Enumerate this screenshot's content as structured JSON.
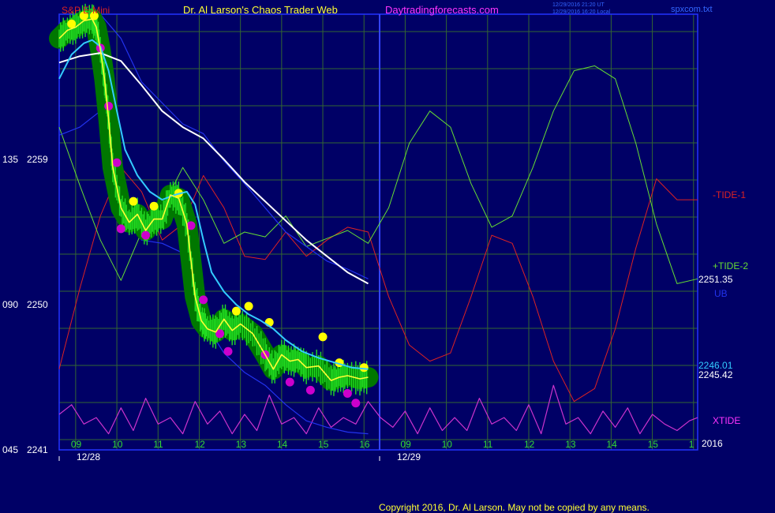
{
  "header": {
    "left_title": "S&P E-Mini",
    "center_title": "Dr. Al Larson's Chaos Trader Web",
    "site": "Daytradingforecasts.com",
    "timestamp_1": "12/29/2016 21:20 UT",
    "timestamp_2": "12/29/2016 16:20 Local",
    "file": "spxcom.txt"
  },
  "footer": {
    "copyright": "Copyright 2016, Dr. Al Larson. May not be copied by any means."
  },
  "colors": {
    "background": "#000066",
    "grid": "#336633",
    "frame": "#2233ff",
    "price_close": "#ffff33",
    "price_bars": "#22dd22",
    "highlight_green": "#007700",
    "dot_yellow": "#ffff00",
    "dot_magenta": "#cc00cc",
    "ema_cyan": "#33ccff",
    "ma_white": "#ffffff",
    "band_blue": "#2233ee",
    "tide_plus": "#66dd33",
    "tide_minus": "#dd2222",
    "xtide": "#cc33cc"
  },
  "chart_data": {
    "type": "line",
    "y_axis": {
      "ticks": [
        {
          "value": 2259,
          "label": "2259",
          "code": "135"
        },
        {
          "value": 2250,
          "label": "2250",
          "code": "090"
        },
        {
          "value": 2241,
          "label": "2241",
          "code": "045"
        }
      ],
      "range": [
        2241,
        2268
      ]
    },
    "x_axis": {
      "hour_labels": [
        "09",
        "10",
        "11",
        "12",
        "13",
        "14",
        "15",
        "16",
        "09",
        "10",
        "11",
        "12",
        "13",
        "14",
        "15",
        "1"
      ],
      "date_labels": [
        "12/28",
        "12/29"
      ],
      "year_label": "2016",
      "range": [
        8.5,
        24.0
      ]
    },
    "right_labels": {
      "tide_minus_1": "-TIDE-1",
      "tide_plus_2": "+TIDE-2",
      "price_current": "2251.35",
      "ub_label": "UB",
      "ema_value": "2246.01",
      "price_close_value": "2245.42",
      "xtide_label": "XTIDE"
    },
    "series": [
      {
        "name": "price",
        "color": "#ffff33",
        "x": [
          8.5,
          8.7,
          8.9,
          9.1,
          9.3,
          9.4,
          9.5,
          9.6,
          9.7,
          9.8,
          10.0,
          10.2,
          10.4,
          10.6,
          10.8,
          11.0,
          11.2,
          11.4,
          11.6,
          11.8,
          11.95,
          12.1,
          12.3,
          12.5,
          12.7,
          12.9,
          13.2,
          13.5,
          13.7,
          13.9,
          14.1,
          14.3,
          14.5,
          14.8,
          15.1,
          15.3,
          15.5,
          15.8,
          16.0
        ],
        "values": [
          2266.5,
          2267.0,
          2267.2,
          2267.6,
          2267.7,
          2267.2,
          2265.8,
          2264.0,
          2261.5,
          2258.5,
          2256.0,
          2255.1,
          2255.6,
          2254.6,
          2255.3,
          2255.3,
          2256.8,
          2256.6,
          2255.0,
          2250.5,
          2249.0,
          2248.5,
          2248.3,
          2249.1,
          2248.4,
          2248.8,
          2248.2,
          2246.9,
          2246.0,
          2246.9,
          2246.5,
          2246.6,
          2246.1,
          2246.2,
          2245.3,
          2245.5,
          2245.6,
          2245.4,
          2245.5
        ]
      },
      {
        "name": "+TIDE-2",
        "color": "#66dd33",
        "x": [
          8.5,
          9.0,
          9.5,
          10.0,
          10.5,
          11.0,
          11.5,
          12.0,
          12.5,
          13.0,
          13.5,
          14.0,
          14.5,
          15.0,
          15.5,
          16.0,
          16.5,
          17.0,
          17.5,
          18.0,
          18.5,
          19.0,
          19.5,
          20.0,
          20.5,
          21.0,
          21.5,
          22.0,
          22.5,
          23.0,
          23.5,
          24.0
        ],
        "values": [
          2261.0,
          2257.4,
          2254.0,
          2251.5,
          2254.5,
          2256.0,
          2258.5,
          2256.5,
          2253.8,
          2254.5,
          2254.2,
          2255.5,
          2253.6,
          2254.1,
          2254.6,
          2253.8,
          2256.0,
          2260.0,
          2262.0,
          2261.0,
          2257.5,
          2254.8,
          2255.5,
          2258.5,
          2262.0,
          2264.5,
          2264.8,
          2264.0,
          2260.0,
          2255.0,
          2251.3,
          2251.6
        ]
      },
      {
        "name": "-TIDE-1",
        "color": "#dd2222",
        "x": [
          8.5,
          9.0,
          9.5,
          10.0,
          10.5,
          11.0,
          11.5,
          12.0,
          12.5,
          13.0,
          13.5,
          14.0,
          14.5,
          15.0,
          15.5,
          16.0,
          16.5,
          17.0,
          17.5,
          18.0,
          18.5,
          19.0,
          19.5,
          20.0,
          20.5,
          21.0,
          21.5,
          22.0,
          22.5,
          23.0,
          23.5,
          24.0
        ],
        "values": [
          2246.0,
          2251.0,
          2255.5,
          2258.5,
          2257.0,
          2254.0,
          2255.0,
          2258.0,
          2256.0,
          2253.0,
          2252.8,
          2254.5,
          2253.0,
          2254.0,
          2254.8,
          2254.5,
          2250.5,
          2247.5,
          2246.5,
          2247.0,
          2250.5,
          2254.3,
          2253.8,
          2250.5,
          2246.5,
          2244.0,
          2244.8,
          2248.5,
          2253.5,
          2257.8,
          2256.5,
          2256.5
        ]
      },
      {
        "name": "XTIDE",
        "color": "#cc33cc",
        "x": [
          8.5,
          8.8,
          9.1,
          9.4,
          9.7,
          10.0,
          10.3,
          10.6,
          10.9,
          11.2,
          11.5,
          11.8,
          12.1,
          12.4,
          12.7,
          13.0,
          13.3,
          13.6,
          13.9,
          14.2,
          14.5,
          14.8,
          15.1,
          15.4,
          15.7,
          16.0,
          16.3,
          16.6,
          16.9,
          17.2,
          17.5,
          17.8,
          18.1,
          18.4,
          18.7,
          19.0,
          19.3,
          19.6,
          19.9,
          20.2,
          20.5,
          20.8,
          21.1,
          21.4,
          21.7,
          22.0,
          22.3,
          22.6,
          22.9,
          23.2,
          23.5,
          23.8,
          24.0
        ],
        "values": [
          2243.2,
          2243.8,
          2242.6,
          2243.0,
          2242.0,
          2243.6,
          2242.2,
          2244.2,
          2242.6,
          2243.0,
          2242.0,
          2244.0,
          2242.6,
          2243.4,
          2242.0,
          2243.2,
          2242.2,
          2244.4,
          2242.6,
          2243.0,
          2242.0,
          2243.6,
          2242.4,
          2243.0,
          2242.6,
          2244.0,
          2243.0,
          2242.4,
          2243.4,
          2242.0,
          2243.6,
          2242.2,
          2243.0,
          2242.2,
          2244.2,
          2242.6,
          2243.0,
          2242.2,
          2243.8,
          2242.0,
          2245.0,
          2242.6,
          2243.0,
          2242.0,
          2243.4,
          2242.4,
          2243.6,
          2242.0,
          2243.2,
          2242.6,
          2242.2,
          2242.8,
          2243.0
        ]
      },
      {
        "name": "EMA",
        "color": "#33ccff",
        "x": [
          8.5,
          8.8,
          9.1,
          9.3,
          9.5,
          9.7,
          9.9,
          10.1,
          10.4,
          10.7,
          11.0,
          11.3,
          11.6,
          11.8,
          12.0,
          12.2,
          12.5,
          12.8,
          13.1,
          13.4,
          13.7,
          14.0,
          14.4,
          14.8,
          15.2,
          15.6,
          16.0
        ],
        "values": [
          2264.0,
          2265.5,
          2266.2,
          2266.4,
          2266.0,
          2264.5,
          2262.0,
          2259.6,
          2258.0,
          2257.0,
          2256.5,
          2256.8,
          2257.0,
          2256.2,
          2254.0,
          2252.0,
          2250.8,
          2250.0,
          2249.4,
          2249.0,
          2248.5,
          2247.8,
          2247.1,
          2246.7,
          2246.4,
          2246.1,
          2246.0
        ]
      },
      {
        "name": "MA",
        "color": "#ffffff",
        "x": [
          8.5,
          9.0,
          9.5,
          10.0,
          10.5,
          11.0,
          11.5,
          12.0,
          12.5,
          13.0,
          13.5,
          14.0,
          14.5,
          15.0,
          15.5,
          16.0
        ],
        "values": [
          2265.0,
          2265.4,
          2265.6,
          2265.1,
          2263.6,
          2262.0,
          2261.0,
          2260.3,
          2259.0,
          2257.6,
          2256.4,
          2255.2,
          2254.0,
          2253.0,
          2252.0,
          2251.3
        ]
      },
      {
        "name": "UB",
        "color": "#2233ee",
        "x": [
          8.5,
          9.0,
          9.5,
          10.0,
          10.5,
          11.0,
          11.5,
          12.0,
          12.5,
          13.0,
          13.5,
          14.0,
          14.5,
          15.0,
          15.5,
          16.0
        ],
        "values": [
          2268.0,
          2268.0,
          2268.0,
          2266.5,
          2263.8,
          2262.5,
          2261.2,
          2260.6,
          2258.9,
          2257.5,
          2256.0,
          2254.5,
          2253.6,
          2252.7,
          2252.2,
          2251.6
        ]
      },
      {
        "name": "LB",
        "color": "#2233ee",
        "x": [
          8.5,
          9.0,
          9.5,
          10.0,
          10.5,
          11.0,
          11.5,
          12.0,
          12.5,
          13.0,
          13.5,
          14.0,
          14.5,
          15.0,
          15.5,
          16.0
        ],
        "values": [
          2260.5,
          2261.0,
          2262.0,
          2257.0,
          2254.0,
          2253.8,
          2253.2,
          2249.0,
          2247.0,
          2245.8,
          2245.0,
          2243.8,
          2242.8,
          2242.4,
          2242.1,
          2242.0
        ]
      }
    ],
    "dots_yellow": [
      {
        "x": 8.8,
        "y": 2267.4
      },
      {
        "x": 9.1,
        "y": 2267.9
      },
      {
        "x": 9.35,
        "y": 2267.9
      },
      {
        "x": 10.3,
        "y": 2256.4
      },
      {
        "x": 10.8,
        "y": 2256.1
      },
      {
        "x": 11.4,
        "y": 2256.9
      },
      {
        "x": 12.8,
        "y": 2249.6
      },
      {
        "x": 13.1,
        "y": 2249.9
      },
      {
        "x": 13.6,
        "y": 2248.9
      },
      {
        "x": 14.9,
        "y": 2248.0
      },
      {
        "x": 15.3,
        "y": 2246.4
      },
      {
        "x": 15.9,
        "y": 2246.1
      }
    ],
    "dots_magenta": [
      {
        "x": 9.5,
        "y": 2265.9
      },
      {
        "x": 9.7,
        "y": 2262.3
      },
      {
        "x": 9.9,
        "y": 2258.8
      },
      {
        "x": 10.0,
        "y": 2254.7
      },
      {
        "x": 10.6,
        "y": 2254.3
      },
      {
        "x": 11.7,
        "y": 2254.9
      },
      {
        "x": 12.0,
        "y": 2250.3
      },
      {
        "x": 12.4,
        "y": 2248.2
      },
      {
        "x": 12.6,
        "y": 2247.1
      },
      {
        "x": 13.5,
        "y": 2246.9
      },
      {
        "x": 14.1,
        "y": 2245.2
      },
      {
        "x": 14.6,
        "y": 2244.7
      },
      {
        "x": 15.5,
        "y": 2244.5
      },
      {
        "x": 15.7,
        "y": 2243.9
      }
    ]
  }
}
